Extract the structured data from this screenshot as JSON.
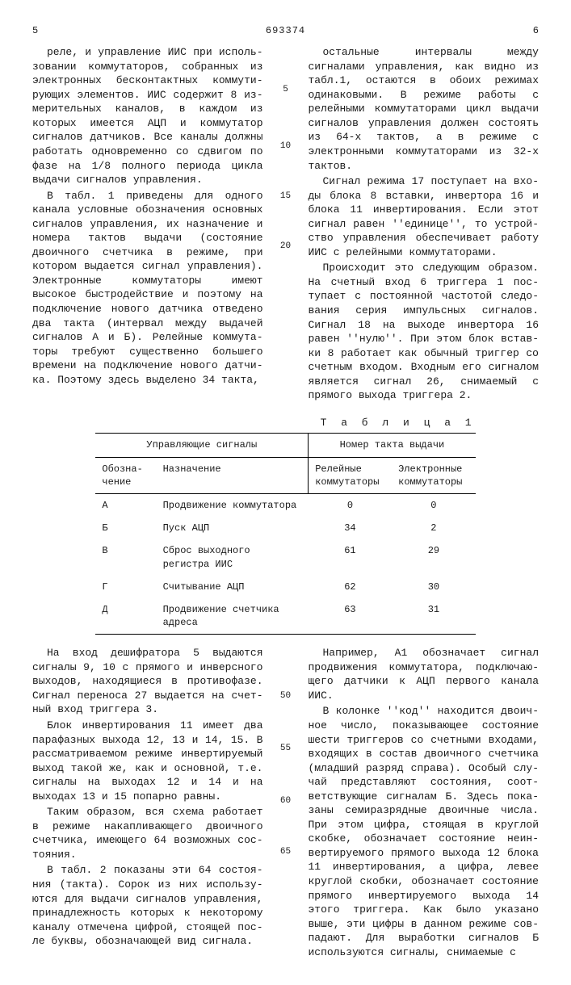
{
  "header": {
    "left_num": "5",
    "doc_id": "693374",
    "right_num": "6"
  },
  "col_left_top": {
    "p1": "реле, и управление ИИС при исполь­зовании коммутаторов, собранных из электронных бесконтактных коммути­рующих элементов. ИИС содержит 8 из­мерительных каналов, в каждом из которых имеется АЦП и коммутатор сиг­налов датчиков. Все каналы должны работать одновременно со сдвигом по фазе на 1/8 полного периода цик­ла выдачи сигналов управления.",
    "p2": "В табл. 1 приведены для одного канала условные обозначения основ­ных сигналов управления, их назначе­ние и номера тактов выдачи (состоя­ние двоичного счетчика в режиме, при котором выдается сигнал управ­ления). Электронные коммутаторы имеют высокое быстродействие и поэтому на подключение нового датчика отведено два такта (интервал между выдачей сигналов А и Б). Релейные коммута­торы требуют существенно большего вре­мени на подключение нового датчи­ка. Поэтому здесь выделено 34 такта,"
  },
  "line_nums_top": [
    "5",
    "10",
    "15",
    "20"
  ],
  "col_right_top": {
    "p1": "остальные интервалы между сигналами управления, как видно из табл.1, остаются в обоих режимах одинаковыми. В режиме работы с релейными комму­таторами цикл выдачи сигналов управ­ления должен состоять из 64-х тактов, а в режиме с электронными коммутато­рами из 32-х тактов.",
    "p2": "Сигнал режима 17 поступает на вхо­ды блока 8 вставки, инвертора 16 и блока 11 инвертирования. Если этот сигнал равен ''единице'', то устрой­ство управления обеспечивает работу ИИС с релейными коммутаторами.",
    "p3": "Происходит это следующим образом. На счетный вход 6 триггера 1 пос­тупает с постоянной частотой следо­вания серия импульсных сигналов. Сигнал 18 на выходе инвертора 16 равен ''нулю''. При этом блок встав­ки 8 работает как обычный триггер со счетным входом. Входным его сигна­лом является сигнал 26, снимаемый с прямого выхода триггера 2."
  },
  "table": {
    "title": "Т а б л и ц а  1",
    "header_group_left": "Управляющие сигналы",
    "header_group_right": "Номер такта выдачи",
    "col1": "Обозна­чение",
    "col2": "Назначение",
    "col3": "Релей­ные ком­му­таторы",
    "col4": "Электрон­ные ком­мутаторы",
    "rows": [
      {
        "a": "А",
        "b": "Продвижение комму­татора",
        "c": "0",
        "d": "0"
      },
      {
        "a": "Б",
        "b": "Пуск АЦП",
        "c": "34",
        "d": "2"
      },
      {
        "a": "В",
        "b": "Сброс выходного регистра ИИС",
        "c": "61",
        "d": "29"
      },
      {
        "a": "Г",
        "b": "Считывание АЦП",
        "c": "62",
        "d": "30"
      },
      {
        "a": "Д",
        "b": "Продвижение счет­чика адреса",
        "c": "63",
        "d": "31"
      }
    ]
  },
  "col_left_bot": {
    "p1": "На вход дешифратора 5 выдаются сигналы 9, 10 с прямого и инверсного выходов, находящиеся в противофазе. Сигнал переноса 27 выдается на счет­ный вход триггера 3.",
    "p2": "Блок инвертирования 11 имеет два парафазных выхода 12, 13 и 14, 15. В рассматриваемом режиме инверти­руемый выход такой же, как и основ­ной, т.е. сигналы на выходах 12 и 14 и на выходах 13 и 15 попарно равны.",
    "p3": "Таким образом, вся схема работает в режиме накапливающего двоичного счетчика, имеющего 64 возможных сос­тояния.",
    "p4": "В табл. 2 показаны эти 64 состоя­ния (такта). Сорок из них использу­ются для выдачи сигналов управления, принадлежность которых к некоторому каналу отмечена цифрой, стоящей пос­ле буквы, обозначающей вид сигнала."
  },
  "line_nums_bot": [
    "50",
    "55",
    "60",
    "65"
  ],
  "col_right_bot": {
    "p1": "Например, А1 обозначает сигнал продвижения коммутатора, подключаю­щего датчики к АЦП первого канала ИИС.",
    "p2": "В колонке ''код'' находится двоич­ное число, показывающее состояние шести триггеров со счетными входами, входящих в состав двоичного счетчика (младший разряд справа). Особый слу­чай представляют состояния, соот­ветствующие сигналам Б. Здесь пока­заны семиразрядные двоичные числа. При этом цифра, стоящая в круглой скобке, обозначает состояние неин­вертируемого прямого выхода 12 бло­ка 11 инвертирования, а цифра, левее круглой скобки, обозначает состоя­ние прямого инвертируемого выхода 14 этого триггера. Как было указано выше, эти цифры в данном режиме сов­падают. Для выработки сигналов Б используются сигналы, снимаемые с"
  }
}
